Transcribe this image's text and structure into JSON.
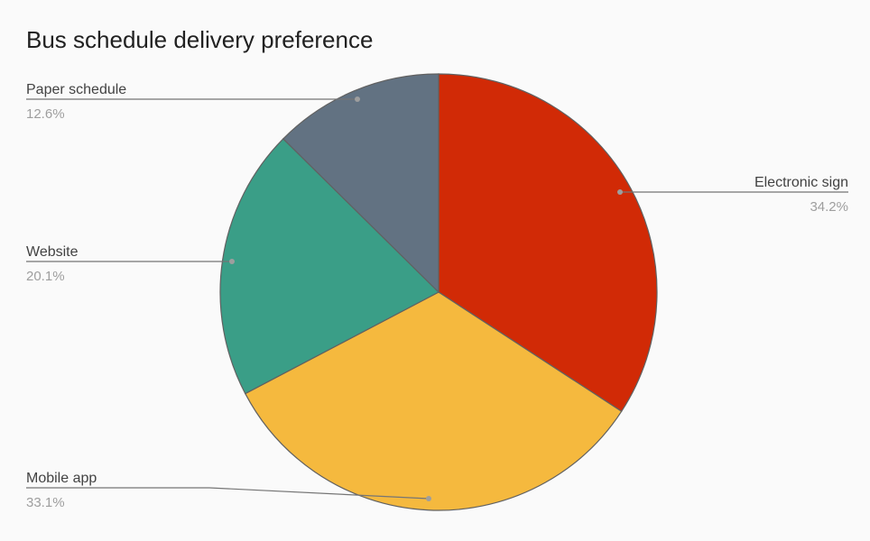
{
  "chart_data": {
    "type": "pie",
    "title": "Bus schedule delivery preference",
    "slices": [
      {
        "label": "Electronic sign",
        "value": 34.2,
        "pct_label": "34.2%",
        "color": "#d12a06"
      },
      {
        "label": "Mobile app",
        "value": 33.1,
        "pct_label": "33.1%",
        "color": "#f5b93e"
      },
      {
        "label": "Website",
        "value": 20.1,
        "pct_label": "20.1%",
        "color": "#3a9e87"
      },
      {
        "label": "Paper schedule",
        "value": 12.6,
        "pct_label": "12.6%",
        "color": "#627282"
      }
    ],
    "legend": "none (labels beside slices)"
  }
}
